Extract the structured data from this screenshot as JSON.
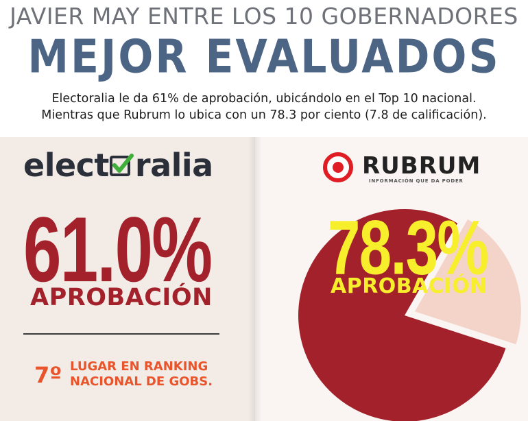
{
  "header": {
    "title_top": "JAVIER MAY ENTRE LOS 10 GOBERNADORES",
    "title_main": "MEJOR EVALUADOS",
    "subtitle_line1": "Electoralia le da 61% de aprobación, ubicándolo en el Top 10 nacional.",
    "subtitle_line2": "Mientras que Rubrum lo ubica con un 78.3 por ciento (7.8 de calificación)."
  },
  "electoralia": {
    "logo_pre": "elect",
    "logo_post": "ralia",
    "percentage": "61.0%",
    "label": "APROBACIÓN",
    "rank_number": "7º",
    "rank_line1": "LUGAR EN RANKING",
    "rank_line2": "NACIONAL DE GOBS."
  },
  "rubrum": {
    "logo_word": "RUBRUM",
    "logo_tagline": "INFORMACIÓN QUE DA PODER",
    "percentage": "78.3%",
    "label": "APROBACIÓN",
    "approval_value": 78.3
  },
  "colors": {
    "title_gray": "#6f7178",
    "title_blue": "#4d6585",
    "electoralia_red": "#a3212b",
    "rank_orange": "#e8542b",
    "pie_red": "#a3212b",
    "pie_pink": "#f4d4c9",
    "rubrum_yellow": "#f7ee2c",
    "check_green": "#3fae3a"
  },
  "icons": {
    "electoralia_check": "check-box-icon",
    "rubrum_mark": "target-circle-icon"
  }
}
